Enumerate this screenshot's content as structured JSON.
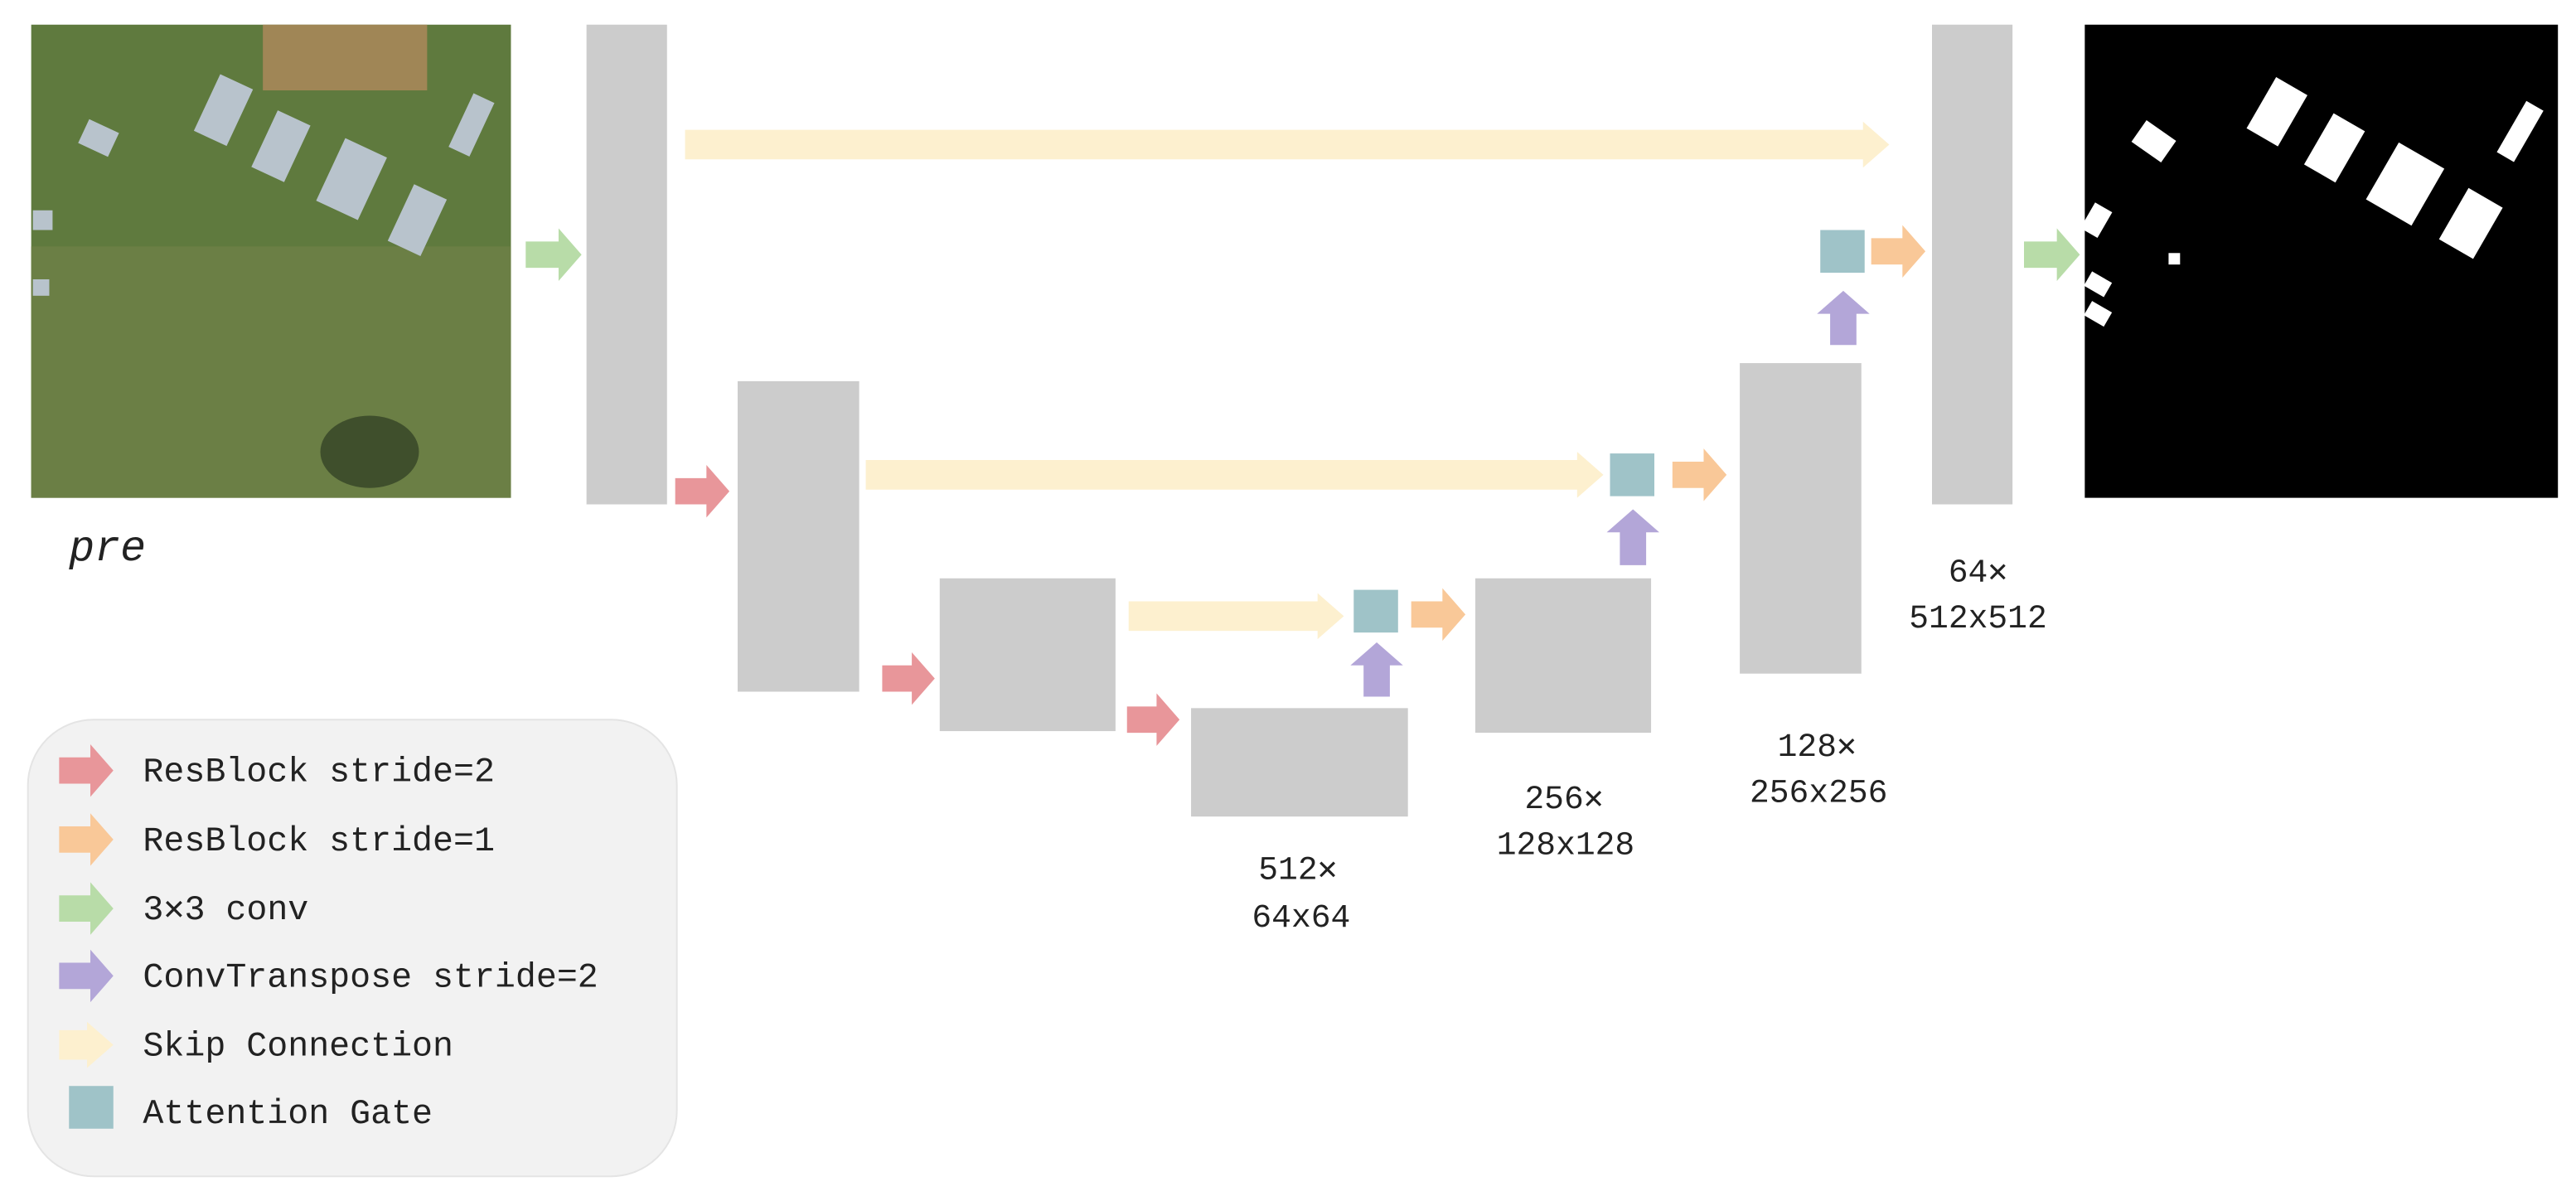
{
  "input_label": "pre",
  "stages": [
    {
      "channels": "64✕",
      "size": "512x512"
    },
    {
      "channels": "128✕",
      "size": "256x256"
    },
    {
      "channels": "256✕",
      "size": "128x128"
    },
    {
      "channels": "512✕",
      "size": "64x64"
    }
  ],
  "legend": [
    "ResBlock stride=2",
    "ResBlock stride=1",
    "3✕3 conv",
    "ConvTranspose stride=2",
    "Skip Connection",
    "Attention Gate"
  ]
}
